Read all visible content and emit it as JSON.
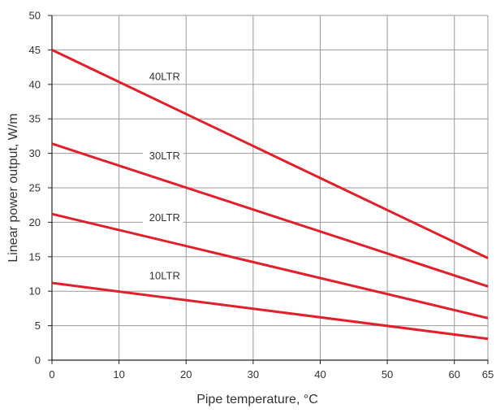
{
  "chart_data": {
    "type": "line",
    "title": "",
    "xlabel": "Pipe temperature, °C",
    "ylabel": "Linear power output, W/m",
    "xlim": [
      0,
      65
    ],
    "ylim": [
      0,
      50
    ],
    "x_ticks": [
      0,
      10,
      20,
      30,
      40,
      50,
      60,
      65
    ],
    "y_ticks": [
      0,
      5,
      10,
      15,
      20,
      25,
      30,
      35,
      40,
      45,
      50
    ],
    "grid": true,
    "line_color": "#e0202a",
    "series": [
      {
        "name": "40LTR",
        "x": [
          0,
          65
        ],
        "y": [
          45.0,
          14.8
        ]
      },
      {
        "name": "30LTR",
        "x": [
          0,
          65
        ],
        "y": [
          31.4,
          10.7
        ]
      },
      {
        "name": "20LTR",
        "x": [
          0,
          65
        ],
        "y": [
          21.2,
          6.1
        ]
      },
      {
        "name": "10LTR",
        "x": [
          0,
          65
        ],
        "y": [
          11.2,
          3.1
        ]
      }
    ]
  }
}
